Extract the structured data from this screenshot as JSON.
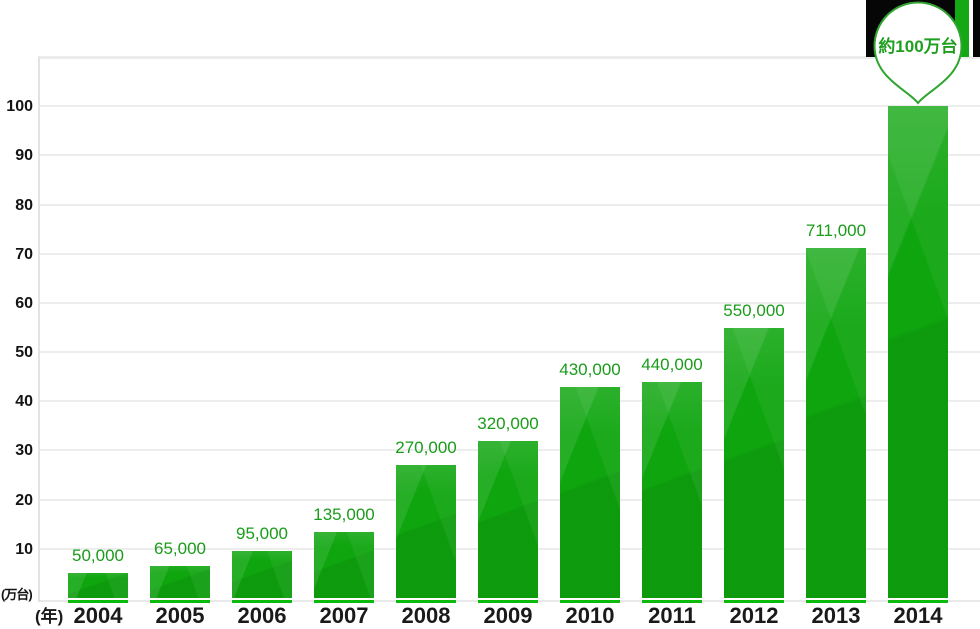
{
  "chart_data": {
    "type": "bar",
    "title": "",
    "xlabel": "(年)",
    "ylabel": "(万台)",
    "categories": [
      "2004",
      "2005",
      "2006",
      "2007",
      "2008",
      "2009",
      "2010",
      "2011",
      "2012",
      "2013",
      "2014"
    ],
    "values": [
      50000,
      65000,
      95000,
      135000,
      270000,
      320000,
      430000,
      440000,
      550000,
      711000,
      1000000
    ],
    "values_man_dai": [
      5,
      6.5,
      9.5,
      13.5,
      27,
      32,
      43,
      44,
      55,
      71.1,
      100
    ],
    "bar_labels": [
      "50,000",
      "65,000",
      "95,000",
      "135,000",
      "270,000",
      "320,000",
      "430,000",
      "440,000",
      "550,000",
      "711,000",
      ""
    ],
    "callout": "約100万台",
    "yticks": [
      10,
      20,
      30,
      40,
      50,
      60,
      70,
      80,
      90,
      100
    ],
    "ylim": [
      0,
      110
    ],
    "grid": true,
    "legend": false
  },
  "labels": {
    "y_unit": "(万台)",
    "x_unit": "(年)"
  },
  "colors": {
    "bar_green": "#0ea50e",
    "bar_underline_green": "#0cba0c",
    "value_text_green": "#1a9c1a",
    "callout_border_green": "#2fa52f",
    "callout_text_green": "#1f9e1f",
    "grid_gray": "#ededed",
    "axis_text_black": "#141414",
    "banner_black": "#060606",
    "banner_green": "#14a814",
    "background": "#ffffff"
  }
}
